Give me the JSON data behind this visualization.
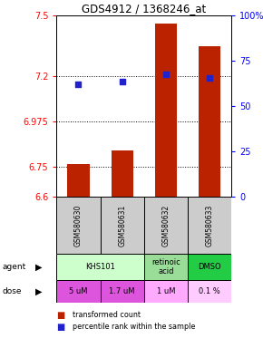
{
  "title": "GDS4912 / 1368246_at",
  "samples": [
    "GSM580630",
    "GSM580631",
    "GSM580632",
    "GSM580633"
  ],
  "bar_values": [
    6.76,
    6.83,
    7.46,
    7.35
  ],
  "percentile_values": [
    7.16,
    7.17,
    7.21,
    7.19
  ],
  "ylim": [
    6.6,
    7.5
  ],
  "yticks_left": [
    6.6,
    6.75,
    6.975,
    7.2,
    7.5
  ],
  "ytick_labels_left": [
    "6.6",
    "6.75",
    "6.975",
    "7.2",
    "7.5"
  ],
  "ytick_labels_right": [
    "0",
    "25",
    "50",
    "75",
    "100%"
  ],
  "bar_color": "#bb2200",
  "percentile_color": "#2222cc",
  "agent_data": [
    [
      0,
      2,
      "KHS101",
      "#ccffcc"
    ],
    [
      2,
      3,
      "retinoic\nacid",
      "#99dd99"
    ],
    [
      3,
      4,
      "DMSO",
      "#22cc44"
    ]
  ],
  "dose_labels": [
    "5 uM",
    "1.7 uM",
    "1 uM",
    "0.1 %"
  ],
  "dose_colors": [
    "#dd55dd",
    "#dd55dd",
    "#ffaaff",
    "#ffccff"
  ],
  "sample_box_color": "#cccccc",
  "legend_red": "transformed count",
  "legend_blue": "percentile rank within the sample"
}
